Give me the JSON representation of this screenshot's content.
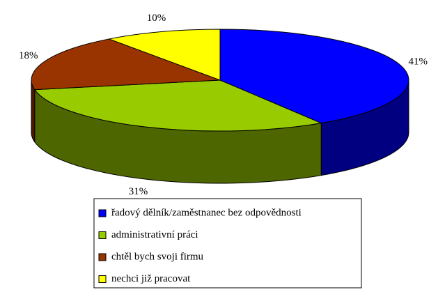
{
  "chart_data": {
    "type": "pie",
    "categories": [
      "řadový dělník/zaměstnanec bez odpovědnosti",
      "administrativní práci",
      "chtěl bych svoji firmu",
      "nechci již pracovat"
    ],
    "values": [
      41,
      31,
      18,
      10
    ],
    "value_labels": [
      "41%",
      "31%",
      "18%",
      "10%"
    ],
    "colors": [
      "#0000ff",
      "#99cc00",
      "#993300",
      "#ffff00"
    ],
    "legend": "bottom"
  }
}
